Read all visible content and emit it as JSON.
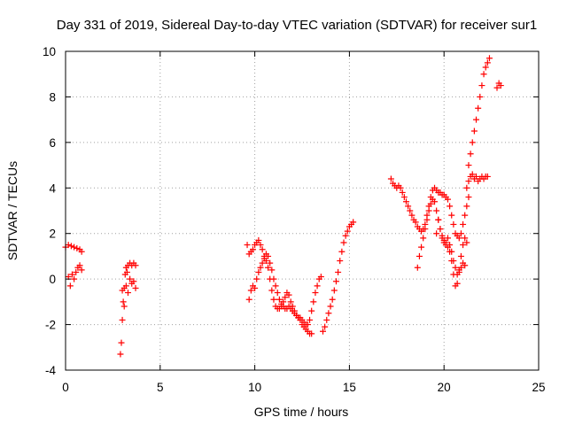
{
  "chart_data": {
    "type": "scatter",
    "title": "Day 331 of 2019, Sidereal Day-to-day VTEC variation (SDTVAR) for receiver sur1",
    "xlabel": "GPS time / hours",
    "ylabel": "SDTVAR / TECUs",
    "xlim": [
      0,
      25
    ],
    "ylim": [
      -4,
      10
    ],
    "xticks": [
      0,
      5,
      10,
      15,
      20,
      25
    ],
    "yticks": [
      -4,
      -2,
      0,
      2,
      4,
      6,
      8,
      10
    ],
    "xtick_labels": [
      "0",
      "5",
      "10",
      "15",
      "20",
      "25"
    ],
    "ytick_labels": [
      "-4",
      "-2",
      "0",
      "2",
      "4",
      "6",
      "8",
      "10"
    ],
    "grid": true,
    "marker": "plus",
    "color": "#ff0000",
    "series": [
      {
        "name": "seg-1",
        "x": [
          0.0,
          0.15,
          0.3,
          0.45,
          0.6,
          0.75,
          0.85
        ],
        "y": [
          1.4,
          1.5,
          1.45,
          1.4,
          1.35,
          1.3,
          1.2
        ]
      },
      {
        "name": "seg-2",
        "x": [
          0.15,
          0.25,
          0.35,
          0.45,
          0.55,
          0.65,
          0.75,
          0.85
        ],
        "y": [
          0.1,
          -0.3,
          0.2,
          0.0,
          0.3,
          0.5,
          0.6,
          0.4
        ]
      },
      {
        "name": "seg-3",
        "x": [
          2.9,
          2.95,
          3.0,
          3.05,
          3.1,
          3.15,
          3.2,
          3.25,
          3.3,
          3.4,
          3.5,
          3.6,
          3.7
        ],
        "y": [
          -3.3,
          -2.8,
          -1.8,
          -1.0,
          -0.4,
          0.2,
          0.5,
          0.3,
          0.6,
          0.7,
          0.6,
          0.7,
          0.6
        ]
      },
      {
        "name": "seg-4",
        "x": [
          3.0,
          3.1,
          3.2,
          3.3,
          3.4,
          3.5,
          3.6,
          3.7
        ],
        "y": [
          -0.5,
          -1.2,
          -0.3,
          -0.6,
          0.0,
          -0.2,
          -0.1,
          -0.4
        ]
      },
      {
        "name": "seg-5",
        "x": [
          9.6,
          9.7,
          9.8,
          9.9,
          10.0,
          10.1,
          10.2,
          10.3,
          10.4,
          10.5,
          10.6,
          10.7,
          10.8,
          10.9,
          11.0,
          11.1,
          11.2,
          11.3,
          11.4,
          11.5,
          11.6,
          11.7,
          11.8,
          11.9,
          12.0,
          12.1,
          12.2,
          12.3,
          12.4,
          12.5,
          12.6,
          12.7,
          12.8,
          12.9,
          13.0
        ],
        "y": [
          1.5,
          1.1,
          1.2,
          1.3,
          1.5,
          1.6,
          1.7,
          1.5,
          1.3,
          1.0,
          0.8,
          0.5,
          0.0,
          -0.5,
          -0.9,
          -1.2,
          -1.3,
          -1.3,
          -1.2,
          -1.0,
          -0.8,
          -0.6,
          -0.7,
          -1.0,
          -1.2,
          -1.4,
          -1.6,
          -1.7,
          -1.8,
          -2.0,
          -2.1,
          -2.2,
          -2.3,
          -2.4,
          -2.4
        ]
      },
      {
        "name": "seg-6",
        "x": [
          9.7,
          9.8,
          9.9,
          10.0,
          10.1,
          10.2,
          10.3,
          10.4,
          10.5,
          10.6,
          10.7,
          10.8,
          10.9,
          11.0,
          11.1,
          11.2,
          11.3,
          11.4,
          11.5,
          11.6,
          11.7,
          11.8,
          11.9,
          12.0,
          12.1,
          12.2,
          12.3,
          12.4,
          12.5,
          12.6,
          12.7,
          12.8,
          12.9,
          13.0,
          13.1,
          13.2,
          13.3,
          13.4,
          13.5
        ],
        "y": [
          -0.9,
          -0.5,
          -0.3,
          -0.4,
          0.0,
          0.3,
          0.5,
          0.7,
          0.9,
          1.1,
          1.0,
          0.7,
          0.4,
          0.0,
          -0.3,
          -0.6,
          -0.9,
          -1.1,
          -1.2,
          -1.3,
          -1.3,
          -1.2,
          -1.3,
          -1.4,
          -1.5,
          -1.6,
          -1.7,
          -1.7,
          -1.8,
          -1.9,
          -2.0,
          -2.0,
          -1.8,
          -1.4,
          -1.0,
          -0.6,
          -0.3,
          0.0,
          0.1
        ]
      },
      {
        "name": "seg-7",
        "x": [
          13.6,
          13.7,
          13.8,
          13.9,
          14.0,
          14.1,
          14.2,
          14.3,
          14.4,
          14.5,
          14.6,
          14.7,
          14.8,
          14.9,
          15.0,
          15.1,
          15.2
        ],
        "y": [
          -2.3,
          -2.1,
          -1.8,
          -1.5,
          -1.2,
          -0.9,
          -0.5,
          -0.1,
          0.3,
          0.8,
          1.2,
          1.6,
          1.9,
          2.1,
          2.3,
          2.4,
          2.5
        ]
      },
      {
        "name": "seg-8",
        "x": [
          17.2,
          17.3,
          17.4,
          17.5,
          17.6,
          17.7,
          17.8,
          17.9,
          18.0,
          18.1,
          18.2,
          18.3,
          18.4,
          18.5,
          18.6,
          18.7,
          18.8,
          18.9,
          19.0,
          19.1,
          19.2,
          19.3,
          19.4,
          19.5,
          19.6,
          19.7,
          19.8,
          19.9,
          20.0,
          20.1,
          20.2,
          20.3,
          20.4,
          20.5,
          20.6,
          20.7,
          20.8,
          20.9,
          21.0,
          21.1,
          21.2,
          21.3
        ],
        "y": [
          4.4,
          4.2,
          4.1,
          4.0,
          4.1,
          4.0,
          3.8,
          3.6,
          3.4,
          3.2,
          3.0,
          2.8,
          2.6,
          2.5,
          2.3,
          2.2,
          2.1,
          2.2,
          2.4,
          2.8,
          3.2,
          3.6,
          3.9,
          4.0,
          3.9,
          3.8,
          3.8,
          3.7,
          3.7,
          3.6,
          3.5,
          3.2,
          2.8,
          2.4,
          2.0,
          1.9,
          1.8,
          2.0,
          2.4,
          2.8,
          3.2,
          3.6
        ]
      },
      {
        "name": "seg-9",
        "x": [
          18.6,
          18.7,
          18.8,
          18.9,
          19.0,
          19.1,
          19.2,
          19.3,
          19.4,
          19.5,
          19.6,
          19.7,
          19.8,
          19.9,
          20.0,
          20.1,
          20.2,
          20.3,
          20.4,
          20.5,
          20.6,
          20.7,
          20.8,
          20.9,
          21.0,
          21.1
        ],
        "y": [
          0.5,
          1.0,
          1.4,
          1.8,
          2.2,
          2.6,
          3.0,
          3.3,
          3.5,
          3.4,
          3.0,
          2.6,
          2.2,
          1.9,
          1.7,
          1.6,
          1.8,
          1.5,
          1.2,
          0.8,
          0.5,
          0.2,
          0.3,
          0.5,
          0.7,
          0.6
        ]
      },
      {
        "name": "seg-10",
        "x": [
          19.6,
          19.7,
          19.8,
          19.9,
          20.0,
          20.1,
          20.2,
          20.3,
          20.4,
          20.5,
          20.6,
          20.7,
          20.8,
          20.9,
          21.0,
          21.1,
          21.2
        ],
        "y": [
          2.0,
          2.6,
          2.2,
          1.8,
          1.6,
          1.5,
          1.4,
          1.2,
          0.8,
          0.2,
          -0.3,
          -0.2,
          0.4,
          1.0,
          1.5,
          1.8,
          1.6
        ]
      },
      {
        "name": "seg-11",
        "x": [
          21.2,
          21.3,
          21.4,
          21.5,
          21.6,
          21.7,
          21.8,
          21.9,
          22.0,
          22.1,
          22.2,
          22.3
        ],
        "y": [
          4.0,
          4.3,
          4.5,
          4.6,
          4.4,
          4.5,
          4.3,
          4.4,
          4.5,
          4.4,
          4.5,
          4.5
        ]
      },
      {
        "name": "seg-12",
        "x": [
          21.3,
          21.4,
          21.5,
          21.6,
          21.7,
          21.8,
          21.9,
          22.0,
          22.1,
          22.2,
          22.3,
          22.4
        ],
        "y": [
          5.0,
          5.5,
          6.0,
          6.5,
          7.0,
          7.5,
          8.0,
          8.5,
          9.0,
          9.3,
          9.5,
          9.7
        ]
      },
      {
        "name": "seg-13",
        "x": [
          22.8,
          22.9,
          23.0
        ],
        "y": [
          8.4,
          8.6,
          8.5
        ]
      }
    ]
  }
}
